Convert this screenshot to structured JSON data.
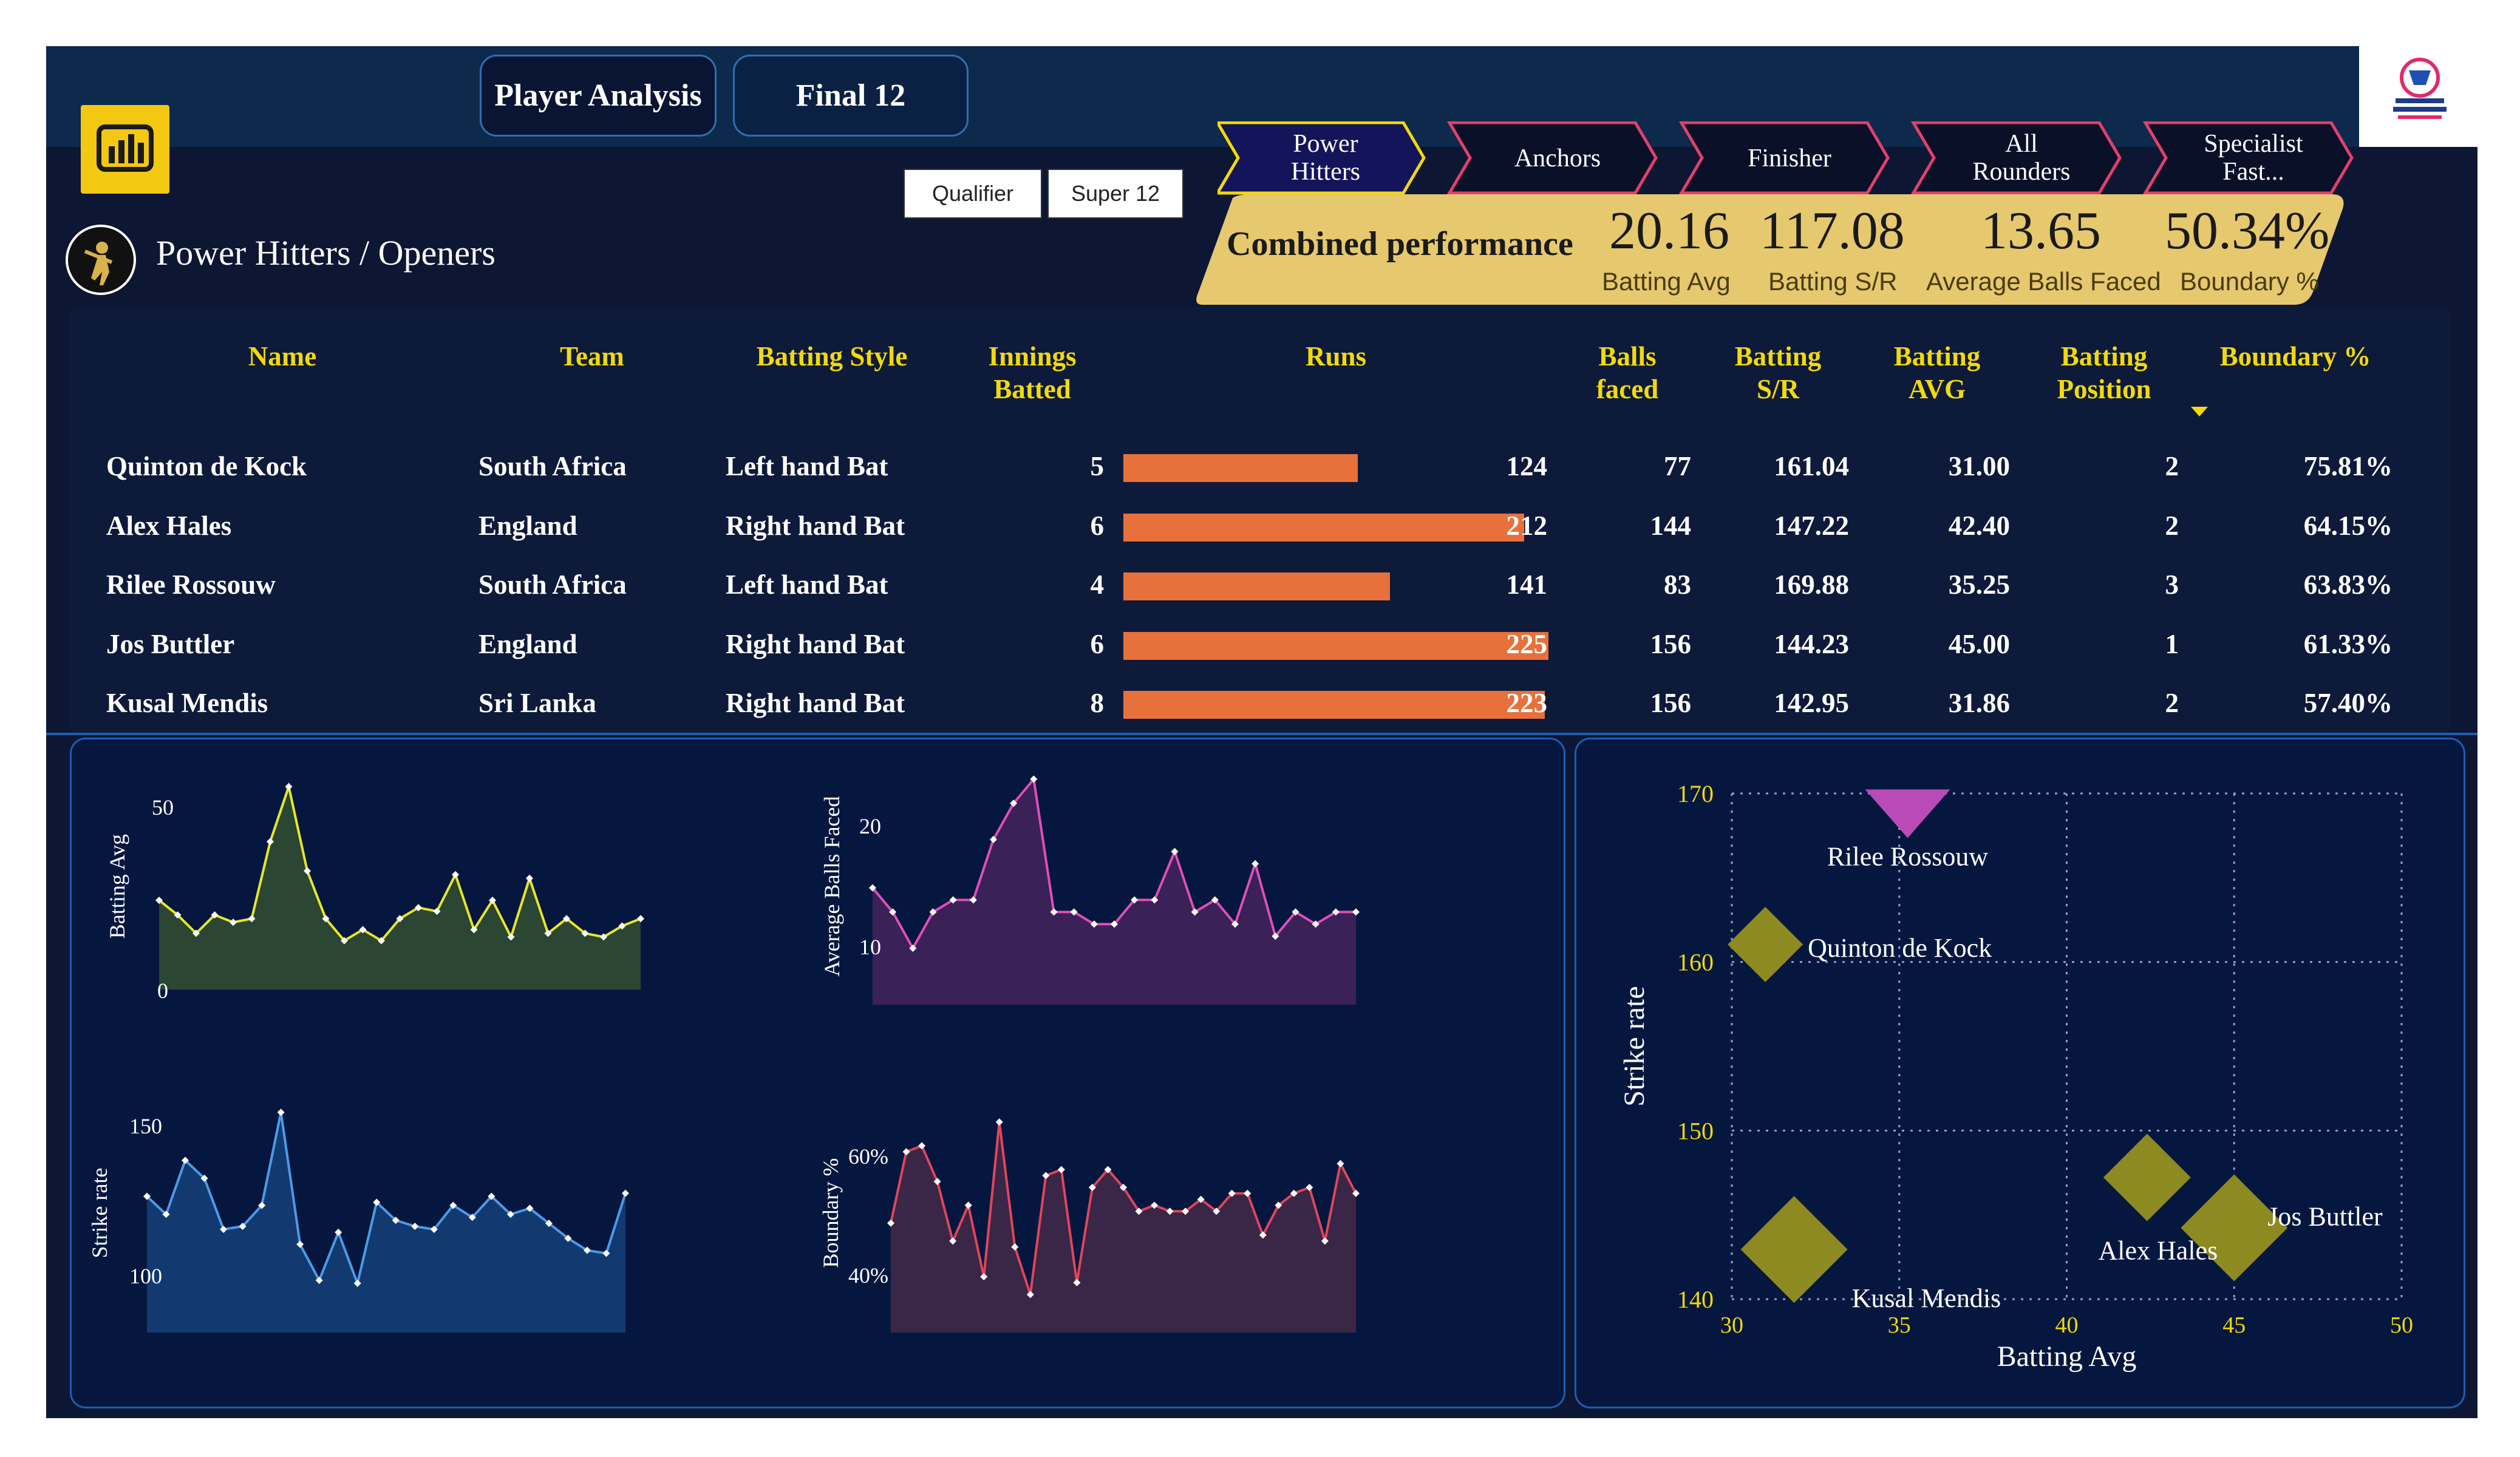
{
  "tabs": [
    {
      "label": "Player Analysis",
      "active": true
    },
    {
      "label": "Final 12",
      "active": false
    }
  ],
  "slicers": [
    "Qualifier",
    "Super 12"
  ],
  "page_title": "Power Hitters / Openers",
  "categories": [
    {
      "label_lines": [
        "Power",
        "Hitters"
      ],
      "active": true
    },
    {
      "label_lines": [
        "Anchors"
      ],
      "active": false
    },
    {
      "label_lines": [
        "Finisher"
      ],
      "active": false
    },
    {
      "label_lines": [
        "All",
        "Rounders"
      ],
      "active": false
    },
    {
      "label_lines": [
        "Specialist",
        "Fast..."
      ],
      "active": false
    }
  ],
  "combined": {
    "label": "Combined performance",
    "kpis": [
      {
        "value": "20.16",
        "label": "Batting Avg"
      },
      {
        "value": "117.08",
        "label": "Batting S/R"
      },
      {
        "value": "13.65",
        "label": "Average Balls Faced"
      },
      {
        "value": "50.34%",
        "label": "Boundary %"
      }
    ]
  },
  "table": {
    "headers": {
      "name": "Name",
      "team": "Team",
      "style": "Batting Style",
      "innings": [
        "Innings",
        "Batted"
      ],
      "runs": "Runs",
      "balls": [
        "Balls",
        "faced"
      ],
      "sr": [
        "Batting",
        "S/R"
      ],
      "avg": [
        "Batting",
        "AVG"
      ],
      "pos": [
        "Batting",
        "Position"
      ],
      "boundary": "Boundary %"
    },
    "max_runs": 225,
    "rows": [
      {
        "name": "Quinton de Kock",
        "team": "South Africa",
        "style": "Left hand Bat",
        "innings": "5",
        "runs": 124,
        "runs_label": "124",
        "balls": "77",
        "sr": "161.04",
        "avg": "31.00",
        "pos": "2",
        "boundary": "75.81%"
      },
      {
        "name": "Alex Hales",
        "team": "England",
        "style": "Right hand Bat",
        "innings": "6",
        "runs": 212,
        "runs_label": "212",
        "balls": "144",
        "sr": "147.22",
        "avg": "42.40",
        "pos": "2",
        "boundary": "64.15%"
      },
      {
        "name": "Rilee Rossouw",
        "team": "South Africa",
        "style": "Left hand Bat",
        "innings": "4",
        "runs": 141,
        "runs_label": "141",
        "balls": "83",
        "sr": "169.88",
        "avg": "35.25",
        "pos": "3",
        "boundary": "63.83%"
      },
      {
        "name": "Jos Buttler",
        "team": "England",
        "style": "Right hand Bat",
        "innings": "6",
        "runs": 225,
        "runs_label": "225",
        "balls": "156",
        "sr": "144.23",
        "avg": "45.00",
        "pos": "1",
        "boundary": "61.33%"
      },
      {
        "name": "Kusal Mendis",
        "team": "Sri Lanka",
        "style": "Right hand Bat",
        "innings": "8",
        "runs": 223,
        "runs_label": "223",
        "balls": "156",
        "sr": "142.95",
        "avg": "31.86",
        "pos": "2",
        "boundary": "57.40%"
      }
    ]
  },
  "colors": {
    "accent_yellow": "#f2d90b",
    "bar_orange": "#e8703a",
    "kpi_gold": "#e6c86e",
    "chevron_active": "#14145a",
    "chevron_inactive": "#0a1028",
    "chevron_border": "#e2406b"
  },
  "chart_data": [
    {
      "type": "area",
      "ylabel": "Batting Avg",
      "yticks": [
        "0",
        "50"
      ],
      "ylim": [
        0,
        60
      ],
      "color": "#e8e62a",
      "fill": "#2b4632",
      "values": [
        25,
        21,
        16,
        21,
        19,
        20,
        41,
        56,
        33,
        20,
        14,
        17,
        14,
        20,
        23,
        22,
        32,
        17,
        25,
        15,
        31,
        16,
        20,
        16,
        15,
        18,
        20
      ]
    },
    {
      "type": "area",
      "ylabel": "Average Balls Faced",
      "yticks": [
        "10",
        "20"
      ],
      "ylim": [
        5,
        26
      ],
      "color": "#e04fb8",
      "fill": "#3a2157",
      "values": [
        15,
        13,
        10,
        13,
        14,
        14,
        19,
        22,
        24,
        13,
        13,
        12,
        12,
        14,
        14,
        18,
        13,
        14,
        12,
        17,
        11,
        13,
        12,
        13,
        13
      ]
    },
    {
      "type": "area",
      "ylabel": "Strike rate",
      "yticks": [
        "100",
        "150"
      ],
      "ylim": [
        80,
        160
      ],
      "color": "#4c9be8",
      "fill": "#133a70",
      "values": [
        127,
        121,
        139,
        133,
        116,
        117,
        124,
        155,
        111,
        99,
        115,
        98,
        125,
        119,
        117,
        116,
        124,
        120,
        127,
        121,
        123,
        118,
        113,
        109,
        108,
        128
      ]
    },
    {
      "type": "area",
      "ylabel": "Boundary %",
      "yticks": [
        "40%",
        "60%"
      ],
      "ylim": [
        30,
        70
      ],
      "color": "#e0455c",
      "fill": "#3a2646",
      "values": [
        49,
        61,
        62,
        56,
        46,
        52,
        40,
        66,
        45,
        37,
        57,
        58,
        39,
        55,
        58,
        55,
        51,
        52,
        51,
        51,
        53,
        51,
        54,
        54,
        47,
        52,
        54,
        55,
        46,
        59,
        54
      ]
    },
    {
      "type": "scatter",
      "xlabel": "Batting Avg",
      "ylabel": "Strike rate",
      "xlim": [
        30,
        50
      ],
      "ylim": [
        140,
        170
      ],
      "xticks": [
        "30",
        "35",
        "40",
        "45",
        "50"
      ],
      "yticks": [
        "140",
        "150",
        "160",
        "170"
      ],
      "points": [
        {
          "label": "Rilee Rossouw",
          "x": 35.25,
          "y": 169.88,
          "shape": "triangle-down",
          "color": "#b94ab8"
        },
        {
          "label": "Quinton de Kock",
          "x": 31.0,
          "y": 161.04,
          "shape": "diamond",
          "color": "#8c8a21"
        },
        {
          "label": "Jos Buttler",
          "x": 45.0,
          "y": 144.23,
          "shape": "diamond",
          "color": "#8c8a21"
        },
        {
          "label": "Alex Hales",
          "x": 42.4,
          "y": 147.22,
          "shape": "diamond",
          "color": "#8c8a21"
        },
        {
          "label": "Kusal Mendis",
          "x": 31.86,
          "y": 142.95,
          "shape": "diamond",
          "color": "#8c8a21"
        }
      ]
    }
  ]
}
